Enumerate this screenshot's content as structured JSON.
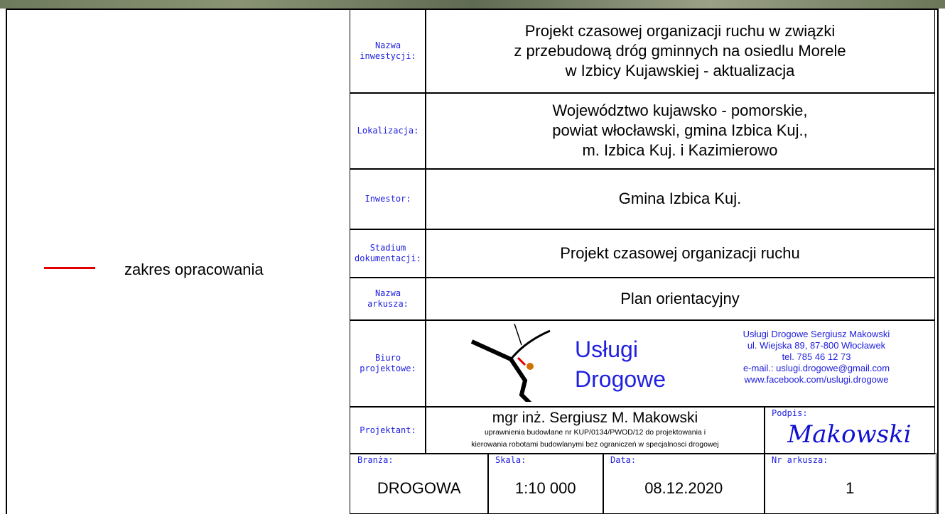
{
  "legend": {
    "label": "zakres opracowania"
  },
  "rows": [
    {
      "label": [
        "Nazwa",
        "inwestycji:"
      ],
      "lines": [
        "Projekt czasowej organizacji ruchu w związki",
        "z przebudową dróg gminnych na osiedlu Morele",
        "w Izbicy Kujawskiej - aktualizacja"
      ]
    },
    {
      "label": [
        "Lokalizacja:"
      ],
      "lines": [
        "Województwo kujawsko - pomorskie,",
        "powiat włocławski, gmina Izbica Kuj.,",
        "m. Izbica Kuj. i Kazimierowo"
      ]
    },
    {
      "label": [
        "Inwestor:"
      ],
      "lines": [
        "Gmina Izbica Kuj."
      ]
    },
    {
      "label": [
        "Stadium",
        "dokumentacji:"
      ],
      "lines": [
        "Projekt czasowej organizacji ruchu"
      ]
    },
    {
      "label": [
        "Nazwa",
        "arkusza:"
      ],
      "lines": [
        "Plan orientacyjny"
      ]
    }
  ],
  "office": {
    "label": [
      "Biuro",
      "projektowe:"
    ],
    "logo": [
      "Usługi",
      "Drogowe"
    ],
    "contact": [
      "Usługi Drogowe Sergiusz Makowski",
      "ul. Wiejska 89, 87-800 Włocławek",
      "tel. 785 46 12 73",
      "e-mail.: uslugi.drogowe@gmail.com",
      "www.facebook.com/uslugi.drogowe"
    ]
  },
  "designer": {
    "label": "Projektant:",
    "name": "mgr inż. Sergiusz M. Makowski",
    "notes": [
      "uprawnienia budowlane nr KUP/0134/PWOD/12 do projektowania  i",
      "kierowania robotami budowlanymi bez ograniczeń w specjalnosci drogowej"
    ],
    "signature_label": "Podpis:",
    "signature": "Makowski"
  },
  "footer": [
    {
      "label": "Branża:",
      "value": "DROGOWA"
    },
    {
      "label": "Skala:",
      "value": "1:10 000"
    },
    {
      "label": "Data:",
      "value": "08.12.2020"
    },
    {
      "label": "Nr arkusza:",
      "value": "1"
    }
  ]
}
